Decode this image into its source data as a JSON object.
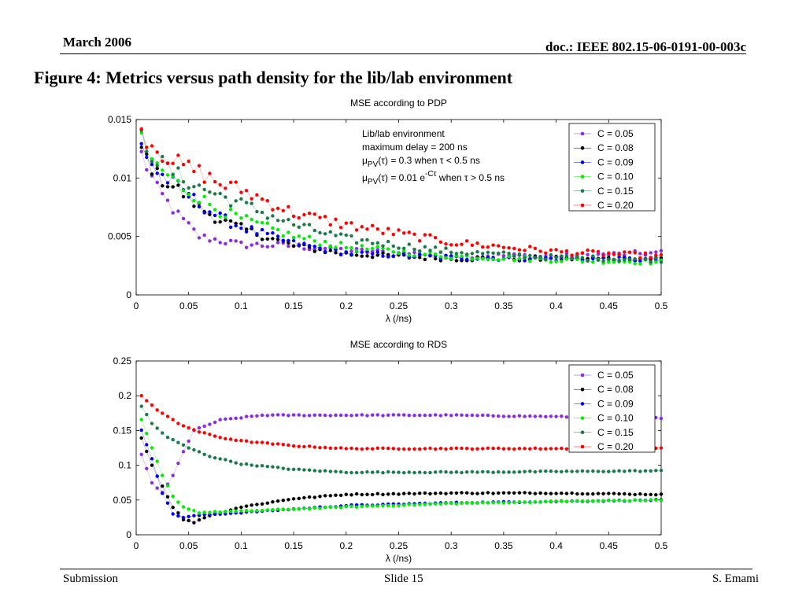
{
  "header": {
    "date": "March 2006",
    "doc": "doc.: IEEE 802.15-06-0191-00-003c"
  },
  "slide_title": "Figure 4: Metrics versus path density for the lib/lab environment",
  "footer": {
    "left": "Submission",
    "center": "Slide 15",
    "right": "S. Emami"
  },
  "chart_data": [
    {
      "type": "scatter",
      "title": "MSE according to PDP",
      "xlabel": "λ (/ns)",
      "ylabel": "",
      "xlim": [
        0,
        0.5
      ],
      "ylim": [
        0,
        0.015
      ],
      "xticks": [
        0,
        0.05,
        0.1,
        0.15,
        0.2,
        0.25,
        0.3,
        0.35,
        0.4,
        0.45,
        0.5
      ],
      "xtick_labels": [
        "0",
        "0.05",
        "0.1",
        "0.15",
        "0.2",
        "0.25",
        "0.3",
        "0.35",
        "0.4",
        "0.45",
        "0.5"
      ],
      "yticks": [
        0,
        0.005,
        0.01,
        0.015
      ],
      "ytick_labels": [
        "0",
        "0.005",
        "0.01",
        "0.015"
      ],
      "legend_position": "top-right",
      "annotation": {
        "line1": "Lib/lab environment",
        "line2": "maximum delay = 200 ns",
        "line3_mu": "μ",
        "line3_sub": "PV",
        "line3_rest": "(τ) = 0.3 when τ < 0.5 ns",
        "line4_mu": "μ",
        "line4_sub": "PV",
        "line4_mid": "(τ) = 0.01 e",
        "line4_sup": "-Cτ",
        "line4_rest": " when τ > 0.5 ns"
      },
      "series": [
        {
          "name": "C = 0.05",
          "color": "#8a2be2",
          "anchors": [
            [
              0.005,
              0.012
            ],
            [
              0.02,
              0.009
            ],
            [
              0.04,
              0.0068
            ],
            [
              0.06,
              0.005
            ],
            [
              0.1,
              0.0043
            ],
            [
              0.15,
              0.0042
            ],
            [
              0.2,
              0.0038
            ],
            [
              0.3,
              0.0034
            ],
            [
              0.4,
              0.0033
            ],
            [
              0.5,
              0.0036
            ]
          ]
        },
        {
          "name": "C = 0.08",
          "color": "#000000",
          "anchors": [
            [
              0.005,
              0.0125
            ],
            [
              0.02,
              0.0102
            ],
            [
              0.04,
              0.009
            ],
            [
              0.06,
              0.0075
            ],
            [
              0.08,
              0.0064
            ],
            [
              0.1,
              0.0057
            ],
            [
              0.15,
              0.0042
            ],
            [
              0.2,
              0.0035
            ],
            [
              0.3,
              0.0031
            ],
            [
              0.4,
              0.0031
            ],
            [
              0.5,
              0.0031
            ]
          ]
        },
        {
          "name": "C = 0.09",
          "color": "#0000ff",
          "anchors": [
            [
              0.005,
              0.0128
            ],
            [
              0.02,
              0.0105
            ],
            [
              0.04,
              0.0092
            ],
            [
              0.06,
              0.0078
            ],
            [
              0.08,
              0.0066
            ],
            [
              0.1,
              0.0058
            ],
            [
              0.15,
              0.0044
            ],
            [
              0.2,
              0.0036
            ],
            [
              0.3,
              0.0032
            ],
            [
              0.4,
              0.0031
            ],
            [
              0.5,
              0.003
            ]
          ]
        },
        {
          "name": "C = 0.10",
          "color": "#00ee00",
          "anchors": [
            [
              0.005,
              0.013
            ],
            [
              0.02,
              0.011
            ],
            [
              0.04,
              0.0095
            ],
            [
              0.06,
              0.0083
            ],
            [
              0.08,
              0.0072
            ],
            [
              0.1,
              0.0065
            ],
            [
              0.15,
              0.005
            ],
            [
              0.2,
              0.0041
            ],
            [
              0.3,
              0.0033
            ],
            [
              0.4,
              0.003
            ],
            [
              0.5,
              0.0028
            ]
          ]
        },
        {
          "name": "C = 0.15",
          "color": "#1a7a4a",
          "anchors": [
            [
              0.005,
              0.0135
            ],
            [
              0.02,
              0.0115
            ],
            [
              0.04,
              0.0102
            ],
            [
              0.06,
              0.0092
            ],
            [
              0.08,
              0.0085
            ],
            [
              0.1,
              0.0078
            ],
            [
              0.15,
              0.006
            ],
            [
              0.2,
              0.0048
            ],
            [
              0.3,
              0.0037
            ],
            [
              0.4,
              0.0032
            ],
            [
              0.5,
              0.003
            ]
          ]
        },
        {
          "name": "C = 0.20",
          "color": "#ff0000",
          "anchors": [
            [
              0.005,
              0.014
            ],
            [
              0.02,
              0.0125
            ],
            [
              0.04,
              0.0112
            ],
            [
              0.06,
              0.0105
            ],
            [
              0.08,
              0.0095
            ],
            [
              0.1,
              0.009
            ],
            [
              0.15,
              0.007
            ],
            [
              0.2,
              0.006
            ],
            [
              0.3,
              0.0045
            ],
            [
              0.4,
              0.0037
            ],
            [
              0.5,
              0.0033
            ]
          ]
        }
      ]
    },
    {
      "type": "scatter",
      "title": "MSE according to RDS",
      "xlabel": "λ (/ns)",
      "ylabel": "",
      "xlim": [
        0,
        0.5
      ],
      "ylim": [
        0,
        0.25
      ],
      "xticks": [
        0,
        0.05,
        0.1,
        0.15,
        0.2,
        0.25,
        0.3,
        0.35,
        0.4,
        0.45,
        0.5
      ],
      "xtick_labels": [
        "0",
        "0.05",
        "0.1",
        "0.15",
        "0.2",
        "0.25",
        "0.3",
        "0.35",
        "0.4",
        "0.45",
        "0.5"
      ],
      "yticks": [
        0,
        0.05,
        0.1,
        0.15,
        0.2,
        0.25
      ],
      "ytick_labels": [
        "0",
        "0.05",
        "0.1",
        "0.15",
        "0.2",
        "0.25"
      ],
      "legend_position": "top-right",
      "series": [
        {
          "name": "C = 0.05",
          "color": "#8a2be2",
          "anchors": [
            [
              0.005,
              0.115
            ],
            [
              0.015,
              0.075
            ],
            [
              0.025,
              0.06
            ],
            [
              0.035,
              0.085
            ],
            [
              0.045,
              0.12
            ],
            [
              0.055,
              0.15
            ],
            [
              0.08,
              0.165
            ],
            [
              0.12,
              0.172
            ],
            [
              0.2,
              0.172
            ],
            [
              0.3,
              0.172
            ],
            [
              0.4,
              0.17
            ],
            [
              0.5,
              0.168
            ]
          ]
        },
        {
          "name": "C = 0.08",
          "color": "#000000",
          "anchors": [
            [
              0.005,
              0.14
            ],
            [
              0.015,
              0.1
            ],
            [
              0.025,
              0.07
            ],
            [
              0.035,
              0.04
            ],
            [
              0.045,
              0.022
            ],
            [
              0.055,
              0.018
            ],
            [
              0.07,
              0.028
            ],
            [
              0.1,
              0.04
            ],
            [
              0.15,
              0.052
            ],
            [
              0.2,
              0.058
            ],
            [
              0.3,
              0.06
            ],
            [
              0.4,
              0.06
            ],
            [
              0.5,
              0.058
            ]
          ]
        },
        {
          "name": "C = 0.09",
          "color": "#0000ff",
          "anchors": [
            [
              0.005,
              0.15
            ],
            [
              0.015,
              0.11
            ],
            [
              0.025,
              0.06
            ],
            [
              0.035,
              0.03
            ],
            [
              0.045,
              0.025
            ],
            [
              0.06,
              0.028
            ],
            [
              0.1,
              0.032
            ],
            [
              0.2,
              0.042
            ],
            [
              0.3,
              0.046
            ],
            [
              0.4,
              0.048
            ],
            [
              0.5,
              0.05
            ]
          ]
        },
        {
          "name": "C = 0.10",
          "color": "#00ee00",
          "anchors": [
            [
              0.005,
              0.165
            ],
            [
              0.015,
              0.125
            ],
            [
              0.025,
              0.085
            ],
            [
              0.035,
              0.055
            ],
            [
              0.045,
              0.04
            ],
            [
              0.06,
              0.032
            ],
            [
              0.1,
              0.034
            ],
            [
              0.2,
              0.04
            ],
            [
              0.3,
              0.045
            ],
            [
              0.4,
              0.048
            ],
            [
              0.5,
              0.05
            ]
          ]
        },
        {
          "name": "C = 0.15",
          "color": "#1a7a4a",
          "anchors": [
            [
              0.005,
              0.185
            ],
            [
              0.015,
              0.16
            ],
            [
              0.03,
              0.14
            ],
            [
              0.05,
              0.125
            ],
            [
              0.07,
              0.113
            ],
            [
              0.1,
              0.102
            ],
            [
              0.15,
              0.094
            ],
            [
              0.2,
              0.09
            ],
            [
              0.3,
              0.09
            ],
            [
              0.4,
              0.091
            ],
            [
              0.5,
              0.092
            ]
          ]
        },
        {
          "name": "C = 0.20",
          "color": "#ff0000",
          "anchors": [
            [
              0.005,
              0.2
            ],
            [
              0.02,
              0.18
            ],
            [
              0.04,
              0.16
            ],
            [
              0.06,
              0.148
            ],
            [
              0.08,
              0.14
            ],
            [
              0.1,
              0.135
            ],
            [
              0.15,
              0.128
            ],
            [
              0.2,
              0.124
            ],
            [
              0.3,
              0.124
            ],
            [
              0.4,
              0.124
            ],
            [
              0.5,
              0.125
            ]
          ]
        }
      ]
    }
  ]
}
